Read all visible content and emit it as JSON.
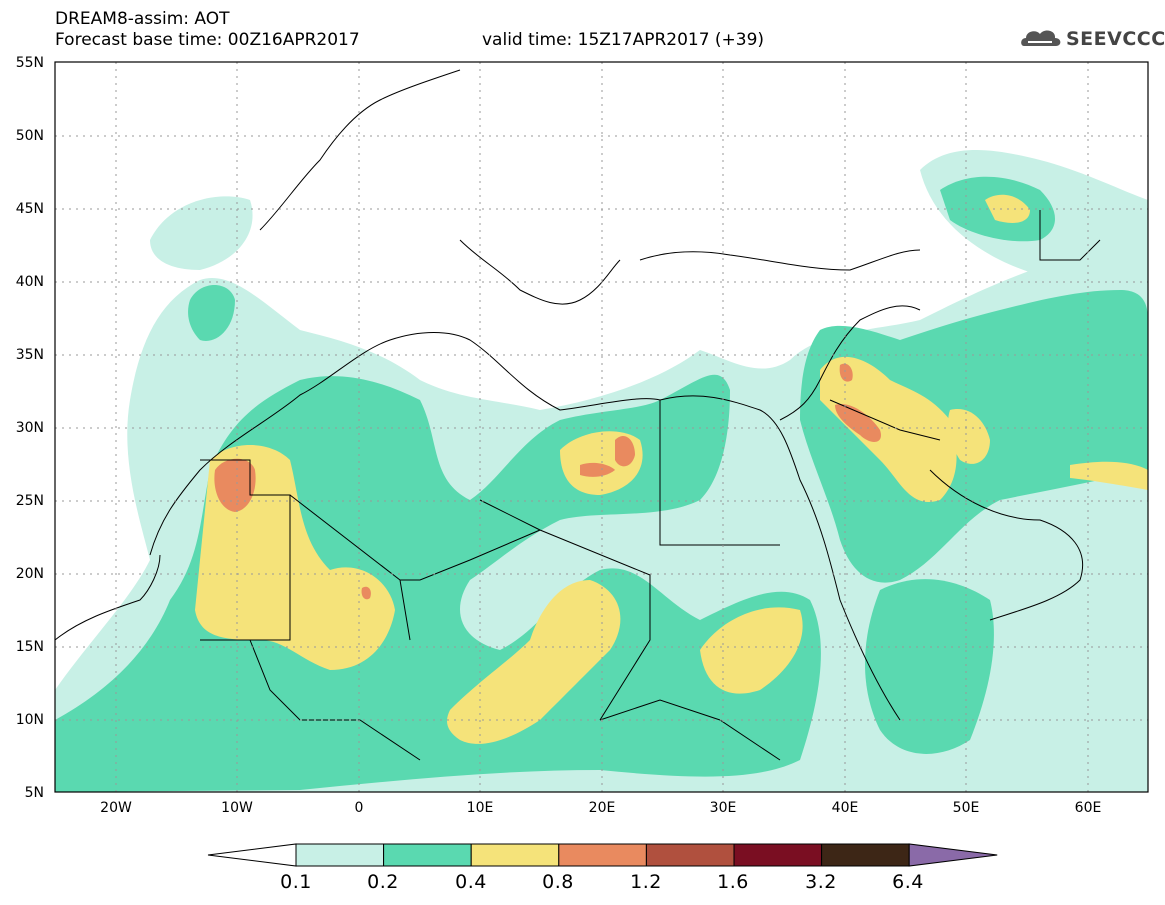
{
  "header": {
    "title_line1": "DREAM8-assim: AOT",
    "base_time": "Forecast base time: 00Z16APR2017",
    "valid_time": "valid time: 15Z17APR2017 (+39)",
    "logo_text": "SEEVCCC"
  },
  "map": {
    "projection": "lat-lon",
    "lon_range": [
      -25,
      65
    ],
    "lat_range": [
      5,
      55
    ],
    "grid": true,
    "y_ticks": [
      "55N",
      "50N",
      "45N",
      "40N",
      "35N",
      "30N",
      "25N",
      "20N",
      "15N",
      "10N",
      "5N"
    ],
    "x_ticks": [
      "20W",
      "10W",
      "0",
      "10E",
      "20E",
      "30E",
      "40E",
      "50E",
      "60E"
    ]
  },
  "colorbar": {
    "labels": [
      "0.1",
      "0.2",
      "0.4",
      "0.8",
      "1.2",
      "1.6",
      "3.2",
      "6.4"
    ],
    "colors": [
      "#ffffff",
      "#c8f0e6",
      "#5ad9b0",
      "#f5e37a",
      "#e98a5f",
      "#b0503e",
      "#7a0e22",
      "#3d2616",
      "#8a6aa8"
    ]
  }
}
